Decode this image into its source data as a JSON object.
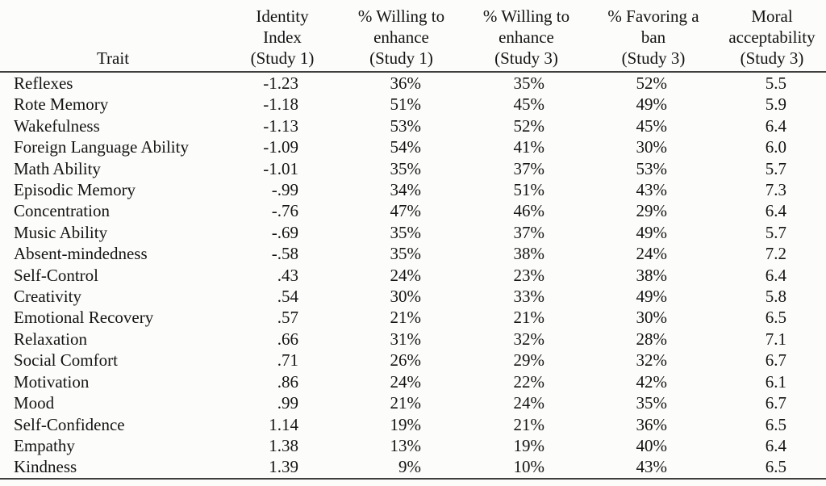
{
  "table": {
    "columns": [
      {
        "key": "trait",
        "label": "Trait"
      },
      {
        "key": "identity-index-study1",
        "label": "Identity\nIndex\n(Study 1)"
      },
      {
        "key": "willing-enhance-study1",
        "label": "% Willing to\nenhance\n(Study 1)"
      },
      {
        "key": "willing-enhance-study3",
        "label": "% Willing to\nenhance\n(Study 3)"
      },
      {
        "key": "favoring-ban-study3",
        "label": "% Favoring a\nban\n(Study 3)"
      },
      {
        "key": "moral-acceptability-study3",
        "label": "Moral\nacceptability\n(Study 3)"
      }
    ],
    "rows": [
      [
        "Reflexes",
        "-1.23",
        "36%",
        "35%",
        "52%",
        "5.5"
      ],
      [
        "Rote Memory",
        "-1.18",
        "51%",
        "45%",
        "49%",
        "5.9"
      ],
      [
        "Wakefulness",
        "-1.13",
        "53%",
        "52%",
        "45%",
        "6.4"
      ],
      [
        "Foreign Language Ability",
        "-1.09",
        "54%",
        "41%",
        "30%",
        "6.0"
      ],
      [
        "Math Ability",
        "-1.01",
        "35%",
        "37%",
        "53%",
        "5.7"
      ],
      [
        "Episodic Memory",
        "-.99",
        "34%",
        "51%",
        "43%",
        "7.3"
      ],
      [
        "Concentration",
        "-.76",
        "47%",
        "46%",
        "29%",
        "6.4"
      ],
      [
        "Music Ability",
        "-.69",
        "35%",
        "37%",
        "49%",
        "5.7"
      ],
      [
        "Absent-mindedness",
        "-.58",
        "35%",
        "38%",
        "24%",
        "7.2"
      ],
      [
        "Self-Control",
        ".43",
        "24%",
        "23%",
        "38%",
        "6.4"
      ],
      [
        "Creativity",
        ".54",
        "30%",
        "33%",
        "49%",
        "5.8"
      ],
      [
        "Emotional Recovery",
        ".57",
        "21%",
        "21%",
        "30%",
        "6.5"
      ],
      [
        "Relaxation",
        ".66",
        "31%",
        "32%",
        "28%",
        "7.1"
      ],
      [
        "Social Comfort",
        ".71",
        "26%",
        "29%",
        "32%",
        "6.7"
      ],
      [
        "Motivation",
        ".86",
        "24%",
        "22%",
        "42%",
        "6.1"
      ],
      [
        "Mood",
        ".99",
        "21%",
        "24%",
        "35%",
        "6.7"
      ],
      [
        "Self-Confidence",
        "1.14",
        "19%",
        "21%",
        "36%",
        "6.5"
      ],
      [
        "Empathy",
        "1.38",
        "13%",
        "19%",
        "40%",
        "6.4"
      ],
      [
        "Kindness",
        "1.39",
        "9%",
        "10%",
        "43%",
        "6.5"
      ]
    ]
  },
  "colors": {
    "background": "#fcfcfa",
    "text": "#141414",
    "rule": "#3f3f3f"
  }
}
